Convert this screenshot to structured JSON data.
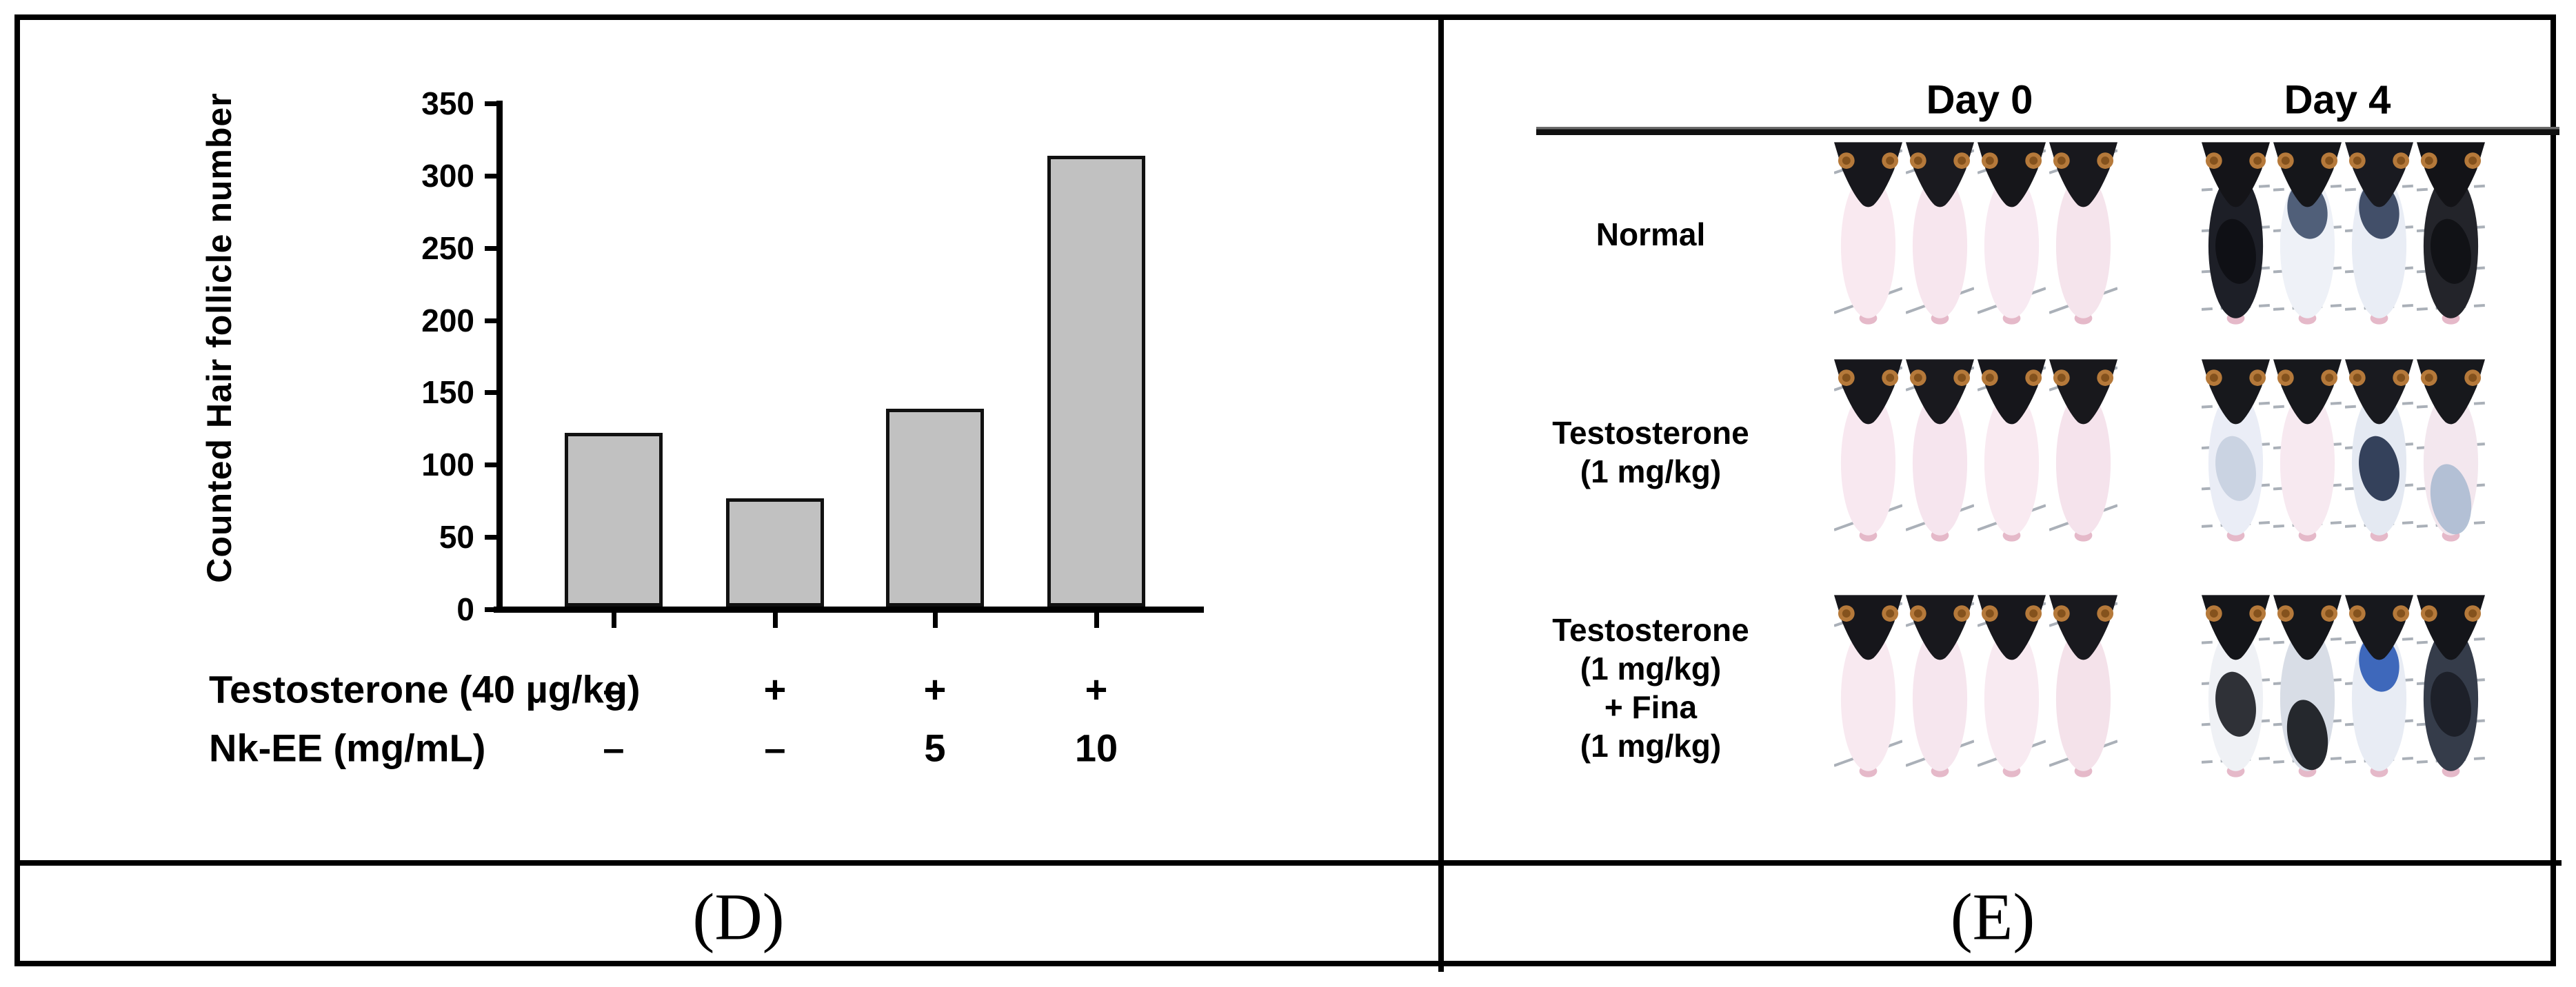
{
  "captions": {
    "panel_d": "(D)",
    "panel_e": "(E)"
  },
  "chart_data": {
    "type": "bar",
    "title": "",
    "xlabel": "",
    "ylabel": "Counted Hair follicle number",
    "ylim": [
      0,
      350
    ],
    "yticks": [
      0,
      50,
      100,
      150,
      200,
      250,
      300,
      350
    ],
    "values": [
      120,
      75,
      137,
      312
    ],
    "bar_fill": "#c1c1c1",
    "bar_border": "#111111",
    "grid": false,
    "dose_rows": [
      {
        "label": "Testosterone (40 µg/kg)",
        "values": [
          "–",
          "+",
          "+",
          "+"
        ]
      },
      {
        "label": "Nk-EE (mg/mL)",
        "values": [
          "–",
          "–",
          "5",
          "10"
        ]
      }
    ]
  },
  "panel_e": {
    "col_headers": [
      "Day 0",
      "Day 4"
    ],
    "ear_color": "#b5793a",
    "ear_inner": "#84521d",
    "tail_color": "#e5b9c9",
    "cage_line_color": "#aab0b8",
    "rows": [
      {
        "label_lines": [
          "Normal"
        ],
        "day0": [
          {
            "body": "#f9e9f0",
            "head": "#17171c",
            "patch": null,
            "patch_pos": null
          },
          {
            "body": "#f7e6ee",
            "head": "#1a1a1f",
            "patch": null,
            "patch_pos": null
          },
          {
            "body": "#f8eaf2",
            "head": "#16161a",
            "patch": null,
            "patch_pos": null
          },
          {
            "body": "#f5e4ec",
            "head": "#18181d",
            "patch": null,
            "patch_pos": null
          }
        ],
        "day4": [
          {
            "body": "#1d1f27",
            "head": "#141418",
            "patch": "#0e0f14",
            "patch_pos": "mid"
          },
          {
            "body": "#eef1f7",
            "head": "#15161a",
            "patch": "#42536e",
            "patch_pos": "upper"
          },
          {
            "body": "#e9edf5",
            "head": "#191a20",
            "patch": "#33415c",
            "patch_pos": "upper"
          },
          {
            "body": "#23242a",
            "head": "#131317",
            "patch": "#101115",
            "patch_pos": "mid"
          }
        ]
      },
      {
        "label_lines": [
          "Testosterone",
          "(1 mg/kg)"
        ],
        "day0": [
          {
            "body": "#f8e8f0",
            "head": "#17171c",
            "patch": null,
            "patch_pos": null
          },
          {
            "body": "#f6e5ee",
            "head": "#19191e",
            "patch": null,
            "patch_pos": null
          },
          {
            "body": "#f9eaf1",
            "head": "#16161b",
            "patch": null,
            "patch_pos": null
          },
          {
            "body": "#f5e3ec",
            "head": "#18181c",
            "patch": null,
            "patch_pos": null
          }
        ],
        "day4": [
          {
            "body": "#eaedf6",
            "head": "#17181c",
            "patch": "#c7d0e0",
            "patch_pos": "mid"
          },
          {
            "body": "#f7e9f0",
            "head": "#17181c",
            "patch": null,
            "patch_pos": null
          },
          {
            "body": "#e4e9f2",
            "head": "#191a1f",
            "patch": "#25324e",
            "patch_pos": "mid"
          },
          {
            "body": "#f3e7ee",
            "head": "#17181c",
            "patch": "#aebdd2",
            "patch_pos": "lower"
          }
        ]
      },
      {
        "label_lines": [
          "Testosterone",
          "(1 mg/kg)",
          "+ Fina",
          "(1 mg/kg)"
        ],
        "day0": [
          {
            "body": "#f8e9f0",
            "head": "#16161b",
            "patch": null,
            "patch_pos": null
          },
          {
            "body": "#f6e6ee",
            "head": "#18181d",
            "patch": null,
            "patch_pos": null
          },
          {
            "body": "#f8eaf1",
            "head": "#17171c",
            "patch": null,
            "patch_pos": null
          },
          {
            "body": "#f4e2ea",
            "head": "#19191e",
            "patch": null,
            "patch_pos": null
          }
        ],
        "day4": [
          {
            "body": "#eff1f5",
            "head": "#141519",
            "patch": "#1e2126",
            "patch_pos": "mid"
          },
          {
            "body": "#d8dde6",
            "head": "#15161a",
            "patch": "#16181d",
            "patch_pos": "lower"
          },
          {
            "body": "#e8ecf4",
            "head": "#17181d",
            "patch": "#2f5cb5",
            "patch_pos": "upper"
          },
          {
            "body": "#353c4a",
            "head": "#14151a",
            "patch": "#1b1e26",
            "patch_pos": "mid"
          }
        ]
      }
    ]
  }
}
